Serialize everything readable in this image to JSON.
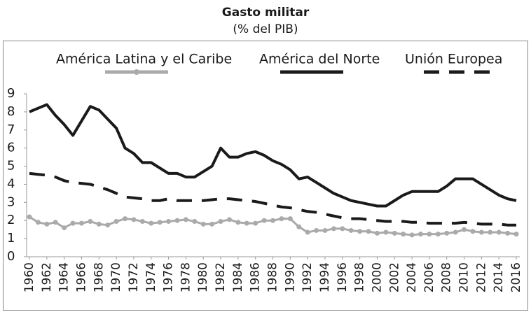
{
  "chart_data": {
    "type": "line",
    "title": "Gasto militar",
    "subtitle": "(% del PIB)",
    "x": [
      1960,
      1961,
      1962,
      1963,
      1964,
      1965,
      1966,
      1967,
      1968,
      1969,
      1970,
      1971,
      1972,
      1973,
      1974,
      1975,
      1976,
      1977,
      1978,
      1979,
      1980,
      1981,
      1982,
      1983,
      1984,
      1985,
      1986,
      1987,
      1988,
      1989,
      1990,
      1991,
      1992,
      1993,
      1994,
      1995,
      1996,
      1997,
      1998,
      1999,
      2000,
      2001,
      2002,
      2003,
      2004,
      2005,
      2006,
      2007,
      2008,
      2009,
      2010,
      2011,
      2012,
      2013,
      2014,
      2015,
      2016
    ],
    "xlim": [
      1960,
      2016
    ],
    "xticks": [
      1960,
      1962,
      1964,
      1966,
      1968,
      1970,
      1972,
      1974,
      1976,
      1978,
      1980,
      1982,
      1984,
      1986,
      1988,
      1990,
      1992,
      1994,
      1996,
      1998,
      2000,
      2002,
      2004,
      2006,
      2008,
      2010,
      2012,
      2014,
      2016
    ],
    "ylim": [
      0,
      9
    ],
    "yticks": [
      0,
      1,
      2,
      3,
      4,
      5,
      6,
      7,
      8,
      9
    ],
    "grid": false,
    "legend": "top",
    "series": [
      {
        "name": "América Latina y el Caribe",
        "color": "#aaaaaa",
        "line_style": "solid",
        "marker": "circle",
        "values": [
          2.2,
          1.9,
          1.8,
          1.9,
          1.6,
          1.85,
          1.85,
          1.95,
          1.8,
          1.75,
          1.95,
          2.1,
          2.05,
          1.95,
          1.85,
          1.9,
          1.95,
          2.0,
          2.05,
          1.95,
          1.8,
          1.8,
          1.95,
          2.05,
          1.9,
          1.85,
          1.85,
          2.0,
          2.0,
          2.1,
          2.1,
          1.65,
          1.35,
          1.45,
          1.45,
          1.55,
          1.55,
          1.45,
          1.4,
          1.4,
          1.3,
          1.35,
          1.3,
          1.25,
          1.2,
          1.25,
          1.25,
          1.25,
          1.3,
          1.35,
          1.5,
          1.4,
          1.35,
          1.35,
          1.35,
          1.3,
          1.25
        ]
      },
      {
        "name": "América del Norte",
        "color": "#1a1a1a",
        "line_style": "solid",
        "marker": "none",
        "values": [
          8.0,
          8.2,
          8.4,
          7.8,
          7.3,
          6.7,
          7.5,
          8.3,
          8.1,
          7.6,
          7.1,
          6.0,
          5.7,
          5.2,
          5.2,
          4.9,
          4.6,
          4.6,
          4.4,
          4.4,
          4.7,
          5.0,
          6.0,
          5.5,
          5.5,
          5.7,
          5.8,
          5.6,
          5.3,
          5.1,
          4.8,
          4.3,
          4.4,
          4.1,
          3.8,
          3.5,
          3.3,
          3.1,
          3.0,
          2.9,
          2.8,
          2.8,
          3.1,
          3.4,
          3.6,
          3.6,
          3.6,
          3.6,
          3.9,
          4.3,
          4.3,
          4.3,
          4.0,
          3.7,
          3.4,
          3.2,
          3.1
        ]
      },
      {
        "name": "Unión Europea",
        "color": "#1a1a1a",
        "line_style": "dashed",
        "marker": "none",
        "values": [
          4.6,
          4.55,
          4.5,
          4.4,
          4.2,
          4.1,
          4.05,
          4.0,
          3.85,
          3.7,
          3.5,
          3.3,
          3.25,
          3.2,
          3.1,
          3.1,
          3.2,
          3.1,
          3.1,
          3.1,
          3.1,
          3.15,
          3.2,
          3.2,
          3.15,
          3.1,
          3.05,
          2.95,
          2.85,
          2.75,
          2.7,
          2.6,
          2.5,
          2.45,
          2.35,
          2.25,
          2.15,
          2.1,
          2.1,
          2.05,
          2.0,
          1.95,
          1.95,
          1.95,
          1.9,
          1.9,
          1.85,
          1.85,
          1.85,
          1.85,
          1.9,
          1.85,
          1.8,
          1.8,
          1.8,
          1.75,
          1.75
        ]
      }
    ]
  }
}
